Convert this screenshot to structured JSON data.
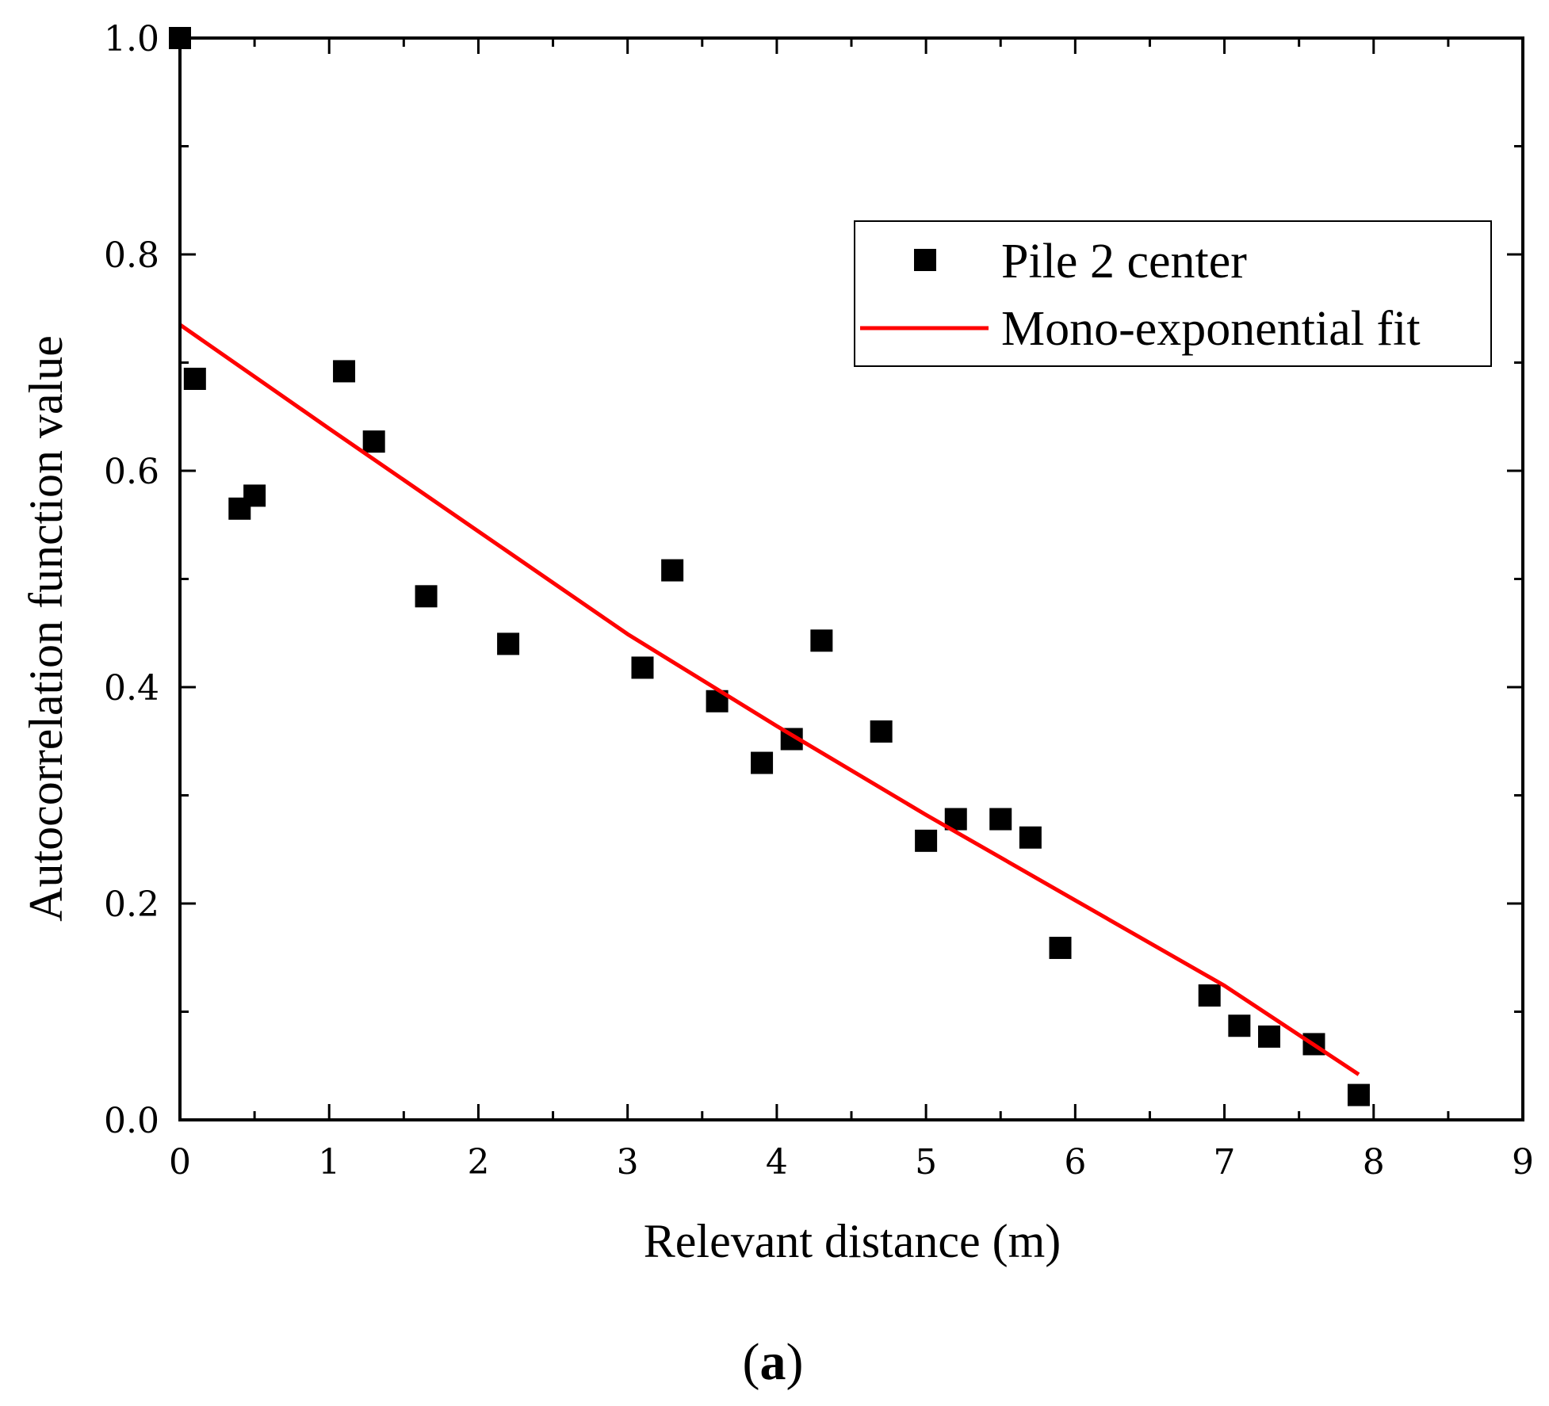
{
  "chart_data": {
    "type": "scatter",
    "xlabel": "Relevant distance (m)",
    "ylabel": "Autocorrelation function value",
    "panel_label": "(a)",
    "panel_label_letter": "a",
    "xlim": [
      0,
      9
    ],
    "ylim": [
      0,
      1.0
    ],
    "x_ticks": [
      0,
      1,
      2,
      3,
      4,
      5,
      6,
      7,
      8,
      9
    ],
    "x_tick_labels": [
      "0",
      "1",
      "2",
      "3",
      "4",
      "5",
      "6",
      "7",
      "8",
      "9"
    ],
    "y_ticks": [
      0.0,
      0.2,
      0.4,
      0.6,
      0.8,
      1.0
    ],
    "y_tick_labels": [
      "0.0",
      "0.2",
      "0.4",
      "0.6",
      "0.8",
      "1.0"
    ],
    "grid": false,
    "legend_position": "top-right",
    "series": [
      {
        "name": "Pile 2 center",
        "type": "scatter",
        "marker": "square",
        "color": "#000000",
        "x": [
          0,
          0.1,
          0.4,
          0.5,
          1.1,
          1.3,
          1.65,
          2.2,
          3.1,
          3.3,
          3.6,
          3.9,
          4.1,
          4.3,
          4.7,
          5.0,
          5.2,
          5.5,
          5.7,
          5.9,
          6.9,
          7.1,
          7.3,
          7.6,
          7.9
        ],
        "y": [
          1.0,
          0.685,
          0.565,
          0.577,
          0.692,
          0.627,
          0.484,
          0.44,
          0.418,
          0.508,
          0.387,
          0.33,
          0.352,
          0.443,
          0.359,
          0.258,
          0.278,
          0.278,
          0.261,
          0.159,
          0.115,
          0.087,
          0.077,
          0.07,
          0.023
        ]
      },
      {
        "name": "Mono-exponential fit",
        "type": "line",
        "color": "#ff0000",
        "x": [
          0,
          1,
          2,
          3,
          4,
          5,
          6,
          7,
          7.9
        ],
        "y": [
          0.735,
          0.639,
          0.544,
          0.449,
          0.364,
          0.282,
          0.203,
          0.124,
          0.042
        ]
      }
    ]
  }
}
